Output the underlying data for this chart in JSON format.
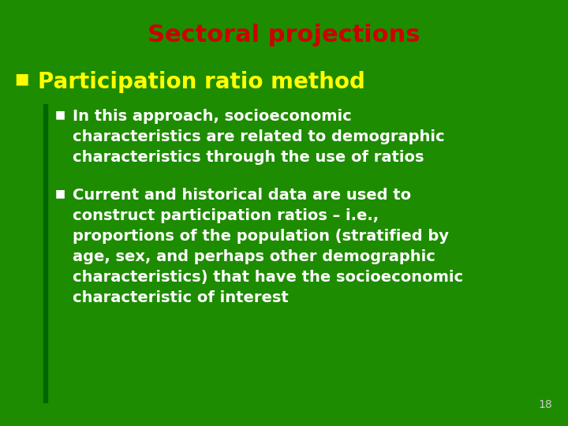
{
  "background_color": "#1e8c00",
  "title": "Sectoral projections",
  "title_color": "#cc0000",
  "title_fontsize": 22,
  "bullet1_text": "Participation ratio method",
  "bullet1_color": "#ffff00",
  "bullet1_fontsize": 20,
  "sub_bullet1_line1": "In this approach, socioeconomic",
  "sub_bullet1_line2": "characteristics are related to demographic",
  "sub_bullet1_line3": "characteristics through the use of ratios",
  "sub_bullet2_line1": "Current and historical data are used to",
  "sub_bullet2_line2": "construct participation ratios – i.e.,",
  "sub_bullet2_line3": "proportions of the population (stratified by",
  "sub_bullet2_line4": "age, sex, and perhaps other demographic",
  "sub_bullet2_line5": "characteristics) that have the socioeconomic",
  "sub_bullet2_line6": "characteristic of interest",
  "sub_bullet_color": "#ffffff",
  "sub_bullet_fontsize": 14,
  "page_number": "18",
  "page_number_color": "#cccccc",
  "page_number_fontsize": 10,
  "left_bar_color": "#006600",
  "bullet_marker_color": "#ffff00",
  "sub_bullet_marker_color": "#ffffff"
}
